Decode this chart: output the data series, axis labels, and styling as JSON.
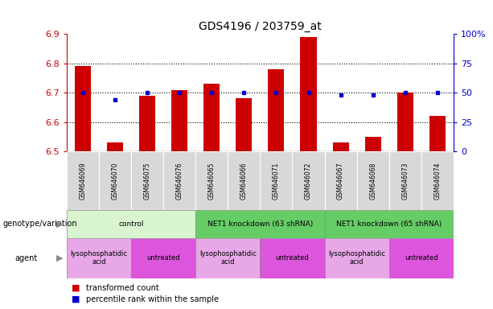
{
  "title": "GDS4196 / 203759_at",
  "samples": [
    "GSM646069",
    "GSM646070",
    "GSM646075",
    "GSM646076",
    "GSM646065",
    "GSM646066",
    "GSM646071",
    "GSM646072",
    "GSM646067",
    "GSM646068",
    "GSM646073",
    "GSM646074"
  ],
  "red_values": [
    6.79,
    6.53,
    6.69,
    6.71,
    6.73,
    6.68,
    6.78,
    6.89,
    6.53,
    6.55,
    6.7,
    6.62
  ],
  "blue_values": [
    50,
    44,
    50,
    50,
    50,
    50,
    50,
    50,
    48,
    48,
    50,
    50
  ],
  "ylim_left": [
    6.5,
    6.9
  ],
  "ylim_right": [
    0,
    100
  ],
  "yticks_left": [
    6.5,
    6.6,
    6.7,
    6.8,
    6.9
  ],
  "yticks_right": [
    0,
    25,
    50,
    75,
    100
  ],
  "ytick_labels_right": [
    "0",
    "25",
    "50",
    "75",
    "100%"
  ],
  "baseline": 6.5,
  "hgrid_lines": [
    6.6,
    6.7,
    6.8
  ],
  "geno_groups": [
    {
      "label": "control",
      "start": 0,
      "end": 4,
      "color": "#d8f5d0"
    },
    {
      "label": "NET1 knockdown (63 shRNA)",
      "start": 4,
      "end": 8,
      "color": "#66cc66"
    },
    {
      "label": "NET1 knockdown (65 shRNA)",
      "start": 8,
      "end": 12,
      "color": "#66cc66"
    }
  ],
  "agent_groups": [
    {
      "label": "lysophosphatidic\nacid",
      "start": 0,
      "end": 2,
      "color": "#e8a8e8"
    },
    {
      "label": "untreated",
      "start": 2,
      "end": 4,
      "color": "#dd55dd"
    },
    {
      "label": "lysophosphatidic\nacid",
      "start": 4,
      "end": 6,
      "color": "#e8a8e8"
    },
    {
      "label": "untreated",
      "start": 6,
      "end": 8,
      "color": "#dd55dd"
    },
    {
      "label": "lysophosphatidic\nacid",
      "start": 8,
      "end": 10,
      "color": "#e8a8e8"
    },
    {
      "label": "untreated",
      "start": 10,
      "end": 12,
      "color": "#dd55dd"
    }
  ],
  "row_label_geno": "genotype/variation",
  "row_label_agent": "agent",
  "legend_red_label": "transformed count",
  "legend_blue_label": "percentile rank within the sample",
  "bar_color": "#cc0000",
  "dot_color": "#0000cc",
  "tick_color_left": "#cc0000",
  "tick_color_right": "#0000cc",
  "bar_width": 0.5,
  "n_samples": 12
}
